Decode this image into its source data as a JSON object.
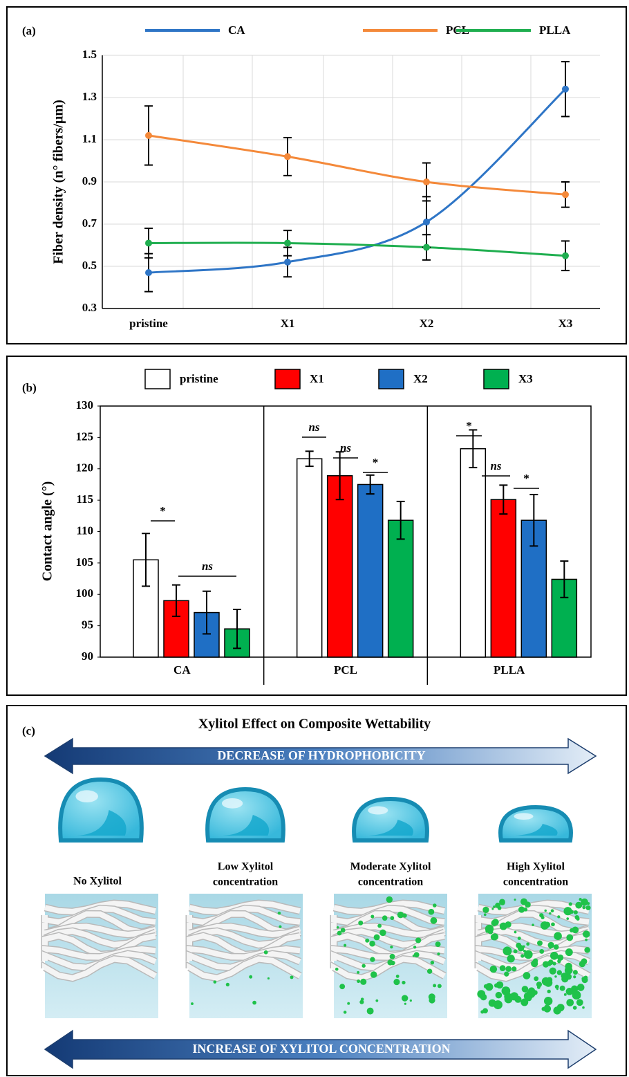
{
  "chart_data": [
    {
      "type": "line",
      "panel_label": "(a)",
      "y_label": "Fiber density (n° fibers/µm)",
      "categories": [
        "pristine",
        "X1",
        "X2",
        "X3"
      ],
      "series": [
        {
          "name": "CA",
          "color": "#2e75c6",
          "values": [
            0.47,
            0.52,
            0.71,
            1.34
          ],
          "errors": [
            0.09,
            0.07,
            0.12,
            0.13
          ]
        },
        {
          "name": "PCL",
          "color": "#f4893a",
          "values": [
            1.12,
            1.02,
            0.9,
            0.84
          ],
          "errors": [
            0.14,
            0.09,
            0.09,
            0.06
          ]
        },
        {
          "name": "PLLA",
          "color": "#1fae4f",
          "values": [
            0.61,
            0.61,
            0.59,
            0.55
          ],
          "errors": [
            0.07,
            0.06,
            0.06,
            0.07
          ]
        }
      ],
      "ylim": [
        0.3,
        1.5
      ],
      "yticks": [
        {
          "value": 0.3,
          "label": "0.3"
        },
        {
          "value": 0.5,
          "label": "0.5"
        },
        {
          "value": 0.7,
          "label": "0.7"
        },
        {
          "value": 0.9,
          "label": "0.9"
        },
        {
          "value": 1.1,
          "label": "1.1"
        },
        {
          "value": 1.3,
          "label": "1.3"
        },
        {
          "value": 1.5,
          "label": "1.5"
        }
      ],
      "grid": true
    },
    {
      "type": "bar",
      "panel_label": "(b)",
      "y_label": "Contact angle (°)",
      "categories": [
        "CA",
        "PCL",
        "PLLA"
      ],
      "series": [
        {
          "name": "pristine",
          "color": "#ffffff",
          "values": [
            105.5,
            121.6,
            123.2
          ],
          "errors": [
            4.2,
            1.2,
            3.0
          ]
        },
        {
          "name": "X1",
          "color": "#ff0000",
          "values": [
            99,
            118.9,
            115.1
          ],
          "errors": [
            2.5,
            3.8,
            2.3
          ]
        },
        {
          "name": "X2",
          "color": "#1f6fc5",
          "values": [
            97.1,
            117.5,
            111.8
          ],
          "errors": [
            3.4,
            1.5,
            4.1
          ]
        },
        {
          "name": "X3",
          "color": "#00b050",
          "values": [
            94.5,
            111.8,
            102.4
          ],
          "errors": [
            3.1,
            3.0,
            2.9
          ]
        }
      ],
      "ylim": [
        90,
        130
      ],
      "yticks": [
        90,
        95,
        100,
        105,
        110,
        115,
        120,
        125,
        130
      ],
      "annotations": [
        "*",
        "ns",
        "ns",
        "ns",
        "*",
        "*",
        "ns",
        "*"
      ]
    }
  ],
  "diagram": {
    "panel_label": "(c)",
    "title": "Xylitol Effect on Composite Wettability",
    "top_arrow": "DECREASE OF HYDROPHOBICITY",
    "bottom_arrow": "INCREASE OF XYLITOL CONCENTRATION",
    "stages": [
      [
        "No Xylitol"
      ],
      [
        "Low Xylitol",
        "concentration"
      ],
      [
        "Moderate Xylitol",
        "concentration"
      ],
      [
        "High Xylitol",
        "concentration"
      ]
    ]
  }
}
